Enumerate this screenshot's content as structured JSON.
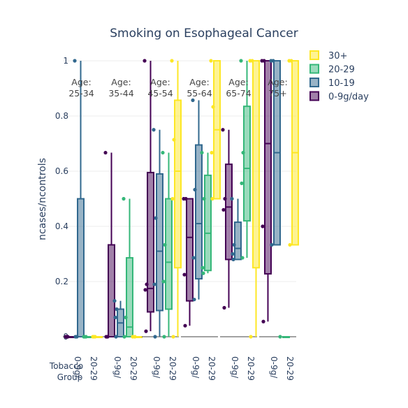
{
  "chart_data": {
    "type": "box",
    "title": "Smoking on Esophageal Cancer",
    "ylabel": "ncases/ncontrols",
    "xlabel": "Tobacco Group",
    "ylim": [
      0,
      1
    ],
    "yticks": [
      0,
      0.2,
      0.4,
      0.6,
      0.8,
      1
    ],
    "ytick_labels": [
      "0",
      "0.2",
      "0.4",
      "0.6",
      "0.8",
      "1"
    ],
    "legend_position": "top-right",
    "colors": {
      "0-9g/day": "#440154",
      "10-19": "#31688e",
      "20-29": "#35b779",
      "30+": "#fde725"
    },
    "legend": [
      "30+",
      "20-29",
      "10-19",
      "0-9g/day"
    ],
    "panels": [
      {
        "label": "Age: 25-34",
        "x_tick_labels": [
          "0-9g/",
          "20-29"
        ],
        "boxes": [
          {
            "series": "0-9g/day",
            "q1": 0,
            "median": 0,
            "q3": 0,
            "whisker_low": 0,
            "whisker_high": 0,
            "points": [
              0,
              0,
              0,
              0
            ]
          },
          {
            "series": "10-19",
            "q1": 0,
            "median": 0,
            "q3": 0.5,
            "whisker_low": 0,
            "whisker_high": 1,
            "points": [
              1,
              0,
              0
            ]
          },
          {
            "series": "20-29",
            "q1": 0,
            "median": 0,
            "q3": 0,
            "whisker_low": 0,
            "whisker_high": 0,
            "points": [
              0,
              0,
              0
            ]
          },
          {
            "series": "30+",
            "q1": 0,
            "median": 0,
            "q3": 0,
            "whisker_low": 0,
            "whisker_high": 0,
            "points": [
              0,
              0,
              0
            ]
          }
        ]
      },
      {
        "label": "Age: 35-44",
        "x_tick_labels": [
          "0-9g/",
          "20-29"
        ],
        "boxes": [
          {
            "series": "0-9g/day",
            "q1": 0,
            "median": 0,
            "q3": 0.333,
            "whisker_low": 0,
            "whisker_high": 0.667,
            "points": [
              0.667,
              0,
              0,
              0
            ]
          },
          {
            "series": "10-19",
            "q1": 0,
            "median": 0.05,
            "q3": 0.1,
            "whisker_low": 0,
            "whisker_high": 0.13,
            "points": [
              0.13,
              0.1,
              0.07,
              0
            ]
          },
          {
            "series": "20-29",
            "q1": 0,
            "median": 0.035,
            "q3": 0.286,
            "whisker_low": 0,
            "whisker_high": 0.5,
            "points": [
              0.5,
              0.07,
              0
            ]
          },
          {
            "series": "30+",
            "q1": 0,
            "median": 0,
            "q3": 0,
            "whisker_low": 0,
            "whisker_high": 0,
            "points": [
              0,
              0
            ]
          }
        ]
      },
      {
        "label": "Age: 45-54",
        "x_tick_labels": [
          "0-9g/",
          "20-29"
        ],
        "boxes": [
          {
            "series": "0-9g/day",
            "q1": 0.09,
            "median": 0.175,
            "q3": 0.595,
            "whisker_low": 0.02,
            "whisker_high": 1,
            "points": [
              1,
              0.19,
              0.17,
              0.02
            ]
          },
          {
            "series": "10-19",
            "q1": 0.095,
            "median": 0.31,
            "q3": 0.59,
            "whisker_low": 0,
            "whisker_high": 0.75,
            "points": [
              0.75,
              0.43,
              0.19,
              0
            ]
          },
          {
            "series": "20-29",
            "q1": 0.1,
            "median": 0.27,
            "q3": 0.5,
            "whisker_low": 0,
            "whisker_high": 0.667,
            "points": [
              0.667,
              0.333,
              0.2,
              0
            ]
          },
          {
            "series": "30+",
            "q1": 0.25,
            "median": 0.6,
            "q3": 0.857,
            "whisker_low": 0,
            "whisker_high": 1,
            "points": [
              1,
              0.714,
              0.5,
              0
            ]
          }
        ]
      },
      {
        "label": "Age: 55-64",
        "x_tick_labels": [
          "0-9g/",
          "20-29"
        ],
        "boxes": [
          {
            "series": "0-9g/day",
            "q1": 0.13,
            "median": 0.36,
            "q3": 0.5,
            "whisker_low": 0.04,
            "whisker_high": 0.5,
            "points": [
              0.5,
              0.5,
              0.225,
              0.04
            ]
          },
          {
            "series": "10-19",
            "q1": 0.21,
            "median": 0.41,
            "q3": 0.695,
            "whisker_low": 0.135,
            "whisker_high": 0.857,
            "points": [
              0.857,
              0.533,
              0.286,
              0.135
            ]
          },
          {
            "series": "20-29",
            "q1": 0.24,
            "median": 0.375,
            "q3": 0.585,
            "whisker_low": 0.23,
            "whisker_high": 0.667,
            "points": [
              0.667,
              0.5,
              0.25,
              0.23
            ]
          },
          {
            "series": "30+",
            "q1": 0.5,
            "median": 0.75,
            "q3": 1,
            "whisker_low": 0.5,
            "whisker_high": 1,
            "points": [
              1,
              0.833,
              0.667,
              0.5
            ]
          }
        ]
      },
      {
        "label": "Age: 65-74",
        "x_tick_labels": [
          "0-9g/",
          "20-29"
        ],
        "boxes": [
          {
            "series": "0-9g/day",
            "q1": 0.28,
            "median": 0.47,
            "q3": 0.625,
            "whisker_low": 0.105,
            "whisker_high": 0.75,
            "points": [
              0.75,
              0.5,
              0.46,
              0.105
            ]
          },
          {
            "series": "10-19",
            "q1": 0.28,
            "median": 0.32,
            "q3": 0.415,
            "whisker_low": 0.28,
            "whisker_high": 0.5,
            "points": [
              0.5,
              0.333,
              0.3,
              0.28
            ]
          },
          {
            "series": "20-29",
            "q1": 0.42,
            "median": 0.61,
            "q3": 0.835,
            "whisker_low": 0.286,
            "whisker_high": 1,
            "points": [
              1,
              0.667,
              0.556,
              0.286
            ]
          },
          {
            "series": "30+",
            "q1": 0.25,
            "median": 1,
            "q3": 1,
            "whisker_low": 0,
            "whisker_high": 1,
            "points": [
              1,
              1,
              0
            ]
          }
        ]
      },
      {
        "label": "Age: 75+",
        "x_tick_labels": [
          "0-9g/",
          "20-29"
        ],
        "boxes": [
          {
            "series": "0-9g/day",
            "q1": 0.228,
            "median": 0.7,
            "q3": 1,
            "whisker_low": 0.055,
            "whisker_high": 1,
            "points": [
              1,
              1,
              0.4,
              0.055
            ]
          },
          {
            "series": "10-19",
            "q1": 0.333,
            "median": 0.667,
            "q3": 1,
            "whisker_low": 0.333,
            "whisker_high": 1,
            "points": [
              1,
              1,
              0.333
            ]
          },
          {
            "series": "20-29",
            "q1": 0,
            "median": 0,
            "q3": 0,
            "whisker_low": 0,
            "whisker_high": 0,
            "points": [
              0
            ]
          },
          {
            "series": "30+",
            "q1": 0.333,
            "median": 0.667,
            "q3": 1,
            "whisker_low": 0.333,
            "whisker_high": 1,
            "points": [
              1,
              1,
              0.333
            ]
          }
        ]
      }
    ]
  }
}
